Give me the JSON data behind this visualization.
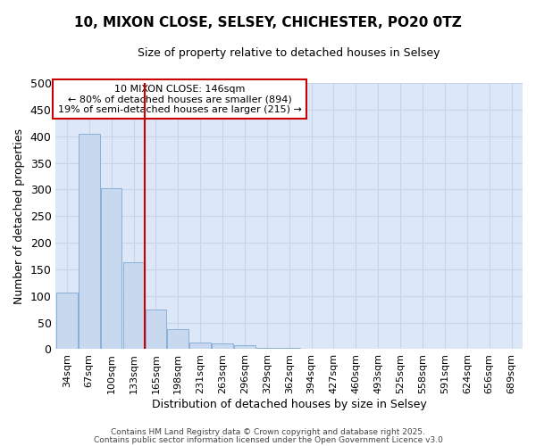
{
  "title_line1": "10, MIXON CLOSE, SELSEY, CHICHESTER, PO20 0TZ",
  "title_line2": "Size of property relative to detached houses in Selsey",
  "xlabel": "Distribution of detached houses by size in Selsey",
  "ylabel": "Number of detached properties",
  "categories": [
    "34sqm",
    "67sqm",
    "100sqm",
    "133sqm",
    "165sqm",
    "198sqm",
    "231sqm",
    "263sqm",
    "296sqm",
    "329sqm",
    "362sqm",
    "394sqm",
    "427sqm",
    "460sqm",
    "493sqm",
    "525sqm",
    "558sqm",
    "591sqm",
    "624sqm",
    "656sqm",
    "689sqm"
  ],
  "values": [
    107,
    405,
    302,
    163,
    75,
    37,
    13,
    11,
    8,
    2,
    2,
    0,
    0,
    1,
    0,
    0,
    0,
    0,
    0,
    0,
    1
  ],
  "bar_color": "#c8d8ee",
  "bar_edge_color": "#8ab0d8",
  "vline_x": 3.5,
  "vline_color": "#cc0000",
  "annotation_text_line1": "10 MIXON CLOSE: 146sqm",
  "annotation_text_line2": "← 80% of detached houses are smaller (894)",
  "annotation_text_line3": "19% of semi-detached houses are larger (215) →",
  "annotation_box_color": "#cc0000",
  "ylim": [
    0,
    500
  ],
  "yticks": [
    0,
    50,
    100,
    150,
    200,
    250,
    300,
    350,
    400,
    450,
    500
  ],
  "grid_color": "#c8d4e8",
  "bg_color": "#dce8f8",
  "footnote1": "Contains HM Land Registry data © Crown copyright and database right 2025.",
  "footnote2": "Contains public sector information licensed under the Open Government Licence v3.0"
}
